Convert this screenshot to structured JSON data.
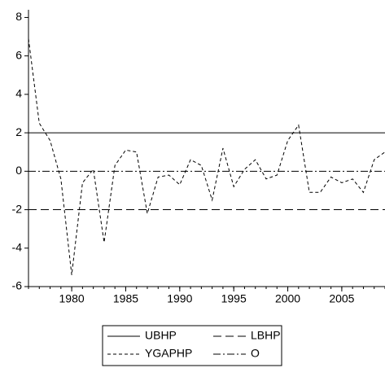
{
  "chart_data": {
    "type": "line",
    "x": [
      1976,
      1977,
      1978,
      1979,
      1980,
      1981,
      1982,
      1983,
      1984,
      1985,
      1986,
      1987,
      1988,
      1989,
      1990,
      1991,
      1992,
      1993,
      1994,
      1995,
      1996,
      1997,
      1998,
      1999,
      2000,
      2001,
      2002,
      2003,
      2004,
      2005,
      2006,
      2007,
      2008,
      2009
    ],
    "xlim": [
      1976,
      2009
    ],
    "xticks": [
      1980,
      1985,
      1990,
      1995,
      2000,
      2005
    ],
    "ylim": [
      -6,
      8.4
    ],
    "yticks": [
      -6,
      -4,
      -2,
      0,
      2,
      4,
      6,
      8
    ],
    "series": [
      {
        "name": "UBHP",
        "color": "#000000",
        "line_style": "solid",
        "values": [
          2,
          2,
          2,
          2,
          2,
          2,
          2,
          2,
          2,
          2,
          2,
          2,
          2,
          2,
          2,
          2,
          2,
          2,
          2,
          2,
          2,
          2,
          2,
          2,
          2,
          2,
          2,
          2,
          2,
          2,
          2,
          2,
          2,
          2
        ]
      },
      {
        "name": "LBHP",
        "color": "#000000",
        "line_style": "long-dash",
        "values": [
          -2,
          -2,
          -2,
          -2,
          -2,
          -2,
          -2,
          -2,
          -2,
          -2,
          -2,
          -2,
          -2,
          -2,
          -2,
          -2,
          -2,
          -2,
          -2,
          -2,
          -2,
          -2,
          -2,
          -2,
          -2,
          -2,
          -2,
          -2,
          -2,
          -2,
          -2,
          -2,
          -2,
          -2
        ]
      },
      {
        "name": "YGAPHP",
        "color": "#000000",
        "line_style": "dash",
        "values": [
          6.9,
          2.5,
          1.6,
          -0.4,
          -5.4,
          -0.6,
          0.1,
          -3.7,
          0.3,
          1.1,
          1.0,
          -2.2,
          -0.3,
          -0.2,
          -0.7,
          0.6,
          0.3,
          -1.5,
          1.2,
          -0.8,
          0.1,
          0.6,
          -0.4,
          -0.2,
          1.6,
          2.4,
          -1.1,
          -1.1,
          -0.3,
          -0.6,
          -0.4,
          -1.1,
          0.6,
          1.0
        ]
      },
      {
        "name": "O",
        "color": "#000000",
        "line_style": "dash-dot",
        "values": [
          0,
          0,
          0,
          0,
          0,
          0,
          0,
          0,
          0,
          0,
          0,
          0,
          0,
          0,
          0,
          0,
          0,
          0,
          0,
          0,
          0,
          0,
          0,
          0,
          0,
          0,
          0,
          0,
          0,
          0,
          0,
          0,
          0,
          0
        ]
      }
    ]
  }
}
